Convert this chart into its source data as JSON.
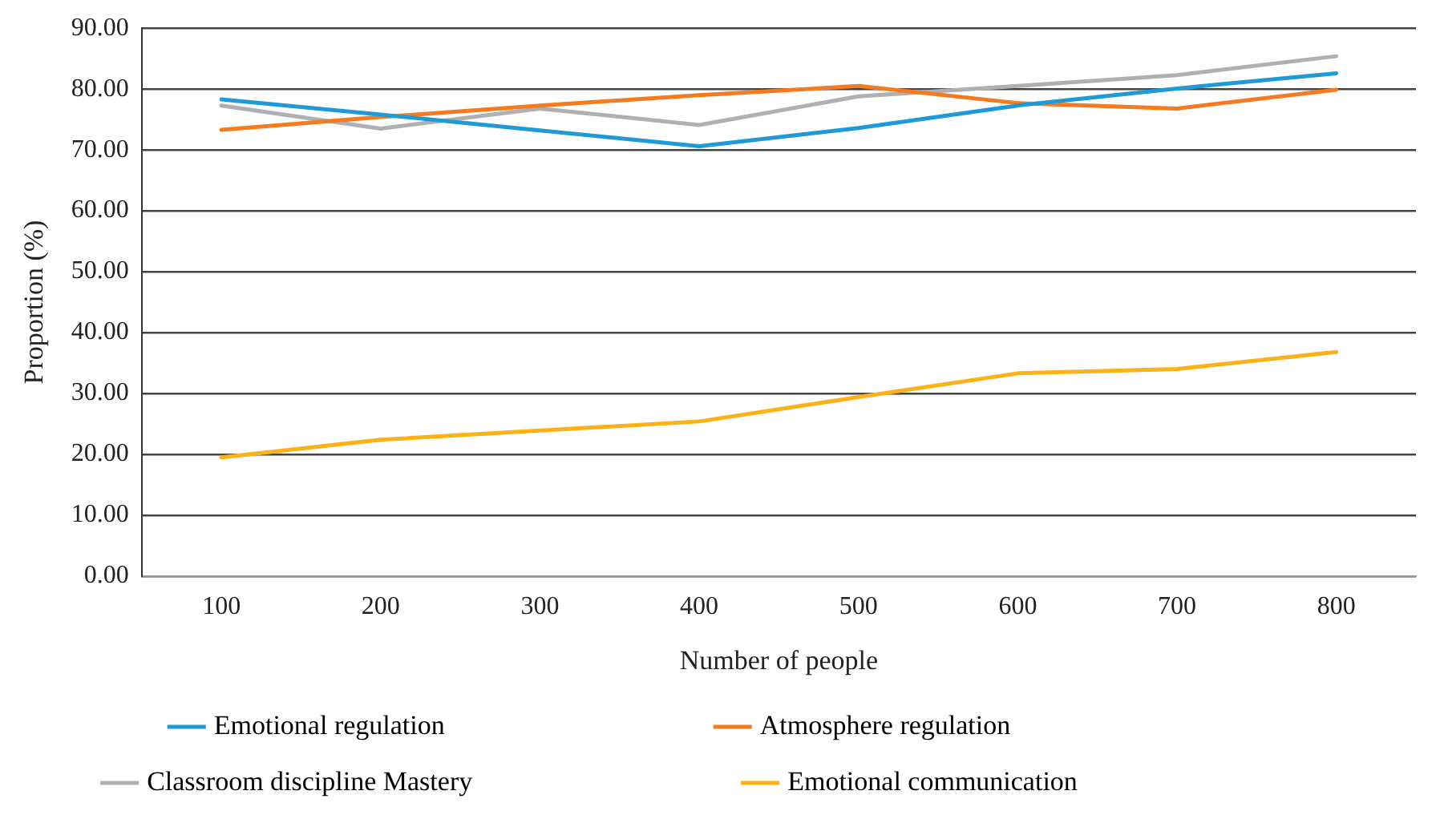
{
  "chart_data": {
    "type": "line",
    "xlabel": "Number of people",
    "ylabel": "Proportion (%)",
    "categories": [
      "100",
      "200",
      "300",
      "400",
      "500",
      "600",
      "700",
      "800"
    ],
    "series": [
      {
        "name": "Emotional regulation",
        "color": "#1f9ad6",
        "values": [
          78.3,
          75.8,
          73.2,
          70.6,
          73.6,
          77.3,
          80.1,
          82.6
        ]
      },
      {
        "name": "Atmosphere regulation",
        "color": "#f47b20",
        "values": [
          73.3,
          75.4,
          77.3,
          79.0,
          80.5,
          77.7,
          76.8,
          79.9
        ]
      },
      {
        "name": "Classroom discipline Mastery",
        "color": "#b0b0b4",
        "values": [
          77.3,
          73.5,
          76.8,
          74.1,
          78.8,
          80.5,
          82.3,
          85.4
        ]
      },
      {
        "name": "Emotional communication",
        "color": "#fbb118",
        "values": [
          19.5,
          22.4,
          23.9,
          25.4,
          29.4,
          33.3,
          34.0,
          36.8
        ]
      }
    ],
    "ylim": [
      0,
      90
    ],
    "yticks": [
      {
        "value": 0,
        "label": "0.00"
      },
      {
        "value": 10,
        "label": "10.00"
      },
      {
        "value": 20,
        "label": "20.00"
      },
      {
        "value": 30,
        "label": "30.00"
      },
      {
        "value": 40,
        "label": "40.00"
      },
      {
        "value": 50,
        "label": "50.00"
      },
      {
        "value": 60,
        "label": "60.00"
      },
      {
        "value": 70,
        "label": "70.00"
      },
      {
        "value": 80,
        "label": "80.00"
      },
      {
        "value": 90,
        "label": "90.00"
      }
    ],
    "grid": "y",
    "legend": "bottom",
    "marker": "none",
    "line_style": "solid"
  }
}
